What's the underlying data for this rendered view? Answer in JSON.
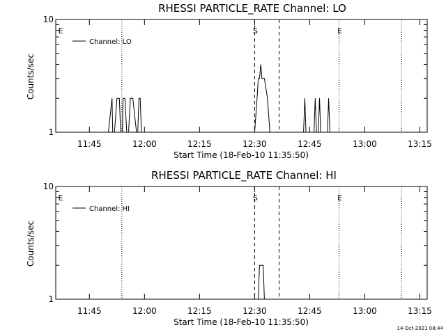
{
  "chart_data": [
    {
      "type": "line",
      "title": "RHESSI PARTICLE_RATE Channel: LO",
      "xlabel": "Start Time (18-Feb-10 11:35:50)",
      "ylabel": "Counts/sec",
      "y_scale": "log",
      "ylim": [
        1,
        10
      ],
      "y_ticks": [
        "1",
        "10"
      ],
      "xlim": [
        "11:35:50",
        "13:17:00"
      ],
      "x_ticks": [
        "11:45",
        "12:00",
        "12:15",
        "12:30",
        "12:45",
        "13:00",
        "13:15"
      ],
      "legend": {
        "position": "top-left",
        "label": "Channel: LO"
      },
      "grid": false,
      "markers": [
        {
          "time": "11:37:00",
          "label": "E",
          "style": "none"
        },
        {
          "time": "11:53:50",
          "label": "",
          "style": "dotted"
        },
        {
          "time": "12:30:00",
          "label": "S",
          "style": "dashed"
        },
        {
          "time": "12:36:40",
          "label": "",
          "style": "dashed"
        },
        {
          "time": "12:53:00",
          "label": "E",
          "style": "dotted"
        },
        {
          "time": "13:10:00",
          "label": "",
          "style": "dotted"
        }
      ],
      "series": [
        {
          "name": "Channel: LO",
          "x": [
            "11:50:10",
            "11:51:10",
            "11:51:20",
            "11:51:50",
            "11:52:30",
            "11:53:10",
            "11:53:30",
            "11:54:00",
            "11:54:10",
            "11:54:40",
            "11:55:10",
            "11:55:40",
            "11:56:10",
            "11:56:50",
            "11:57:50",
            "11:58:10",
            "11:58:30",
            "11:58:50",
            "11:59:10",
            "11:59:30",
            "12:30:00",
            "12:30:40",
            "12:31:00",
            "12:31:20",
            "12:31:40",
            "12:32:00",
            "12:32:20",
            "12:32:40",
            "12:33:30",
            "12:34:10",
            "12:43:20",
            "12:43:40",
            "12:44:00",
            "12:46:10",
            "12:46:30",
            "12:46:50",
            "12:47:20",
            "12:47:40",
            "12:48:00",
            "12:49:50",
            "12:50:10",
            "12:50:30"
          ],
          "y": [
            1,
            2,
            1,
            1,
            2,
            2,
            1,
            1,
            2,
            2,
            1,
            1,
            2,
            2,
            1,
            1,
            2,
            2,
            1,
            1,
            1,
            2,
            3,
            3,
            4,
            3,
            3,
            3,
            2,
            1,
            1,
            2,
            1,
            1,
            2,
            1,
            1,
            2,
            1,
            1,
            2,
            1
          ]
        }
      ]
    },
    {
      "type": "line",
      "title": "RHESSI PARTICLE_RATE Channel: HI",
      "xlabel": "Start Time (18-Feb-10 11:35:50)",
      "ylabel": "Counts/sec",
      "y_scale": "log",
      "ylim": [
        1,
        10
      ],
      "y_ticks": [
        "1",
        "10"
      ],
      "xlim": [
        "11:35:50",
        "13:17:00"
      ],
      "x_ticks": [
        "11:45",
        "12:00",
        "12:15",
        "12:30",
        "12:45",
        "13:00",
        "13:15"
      ],
      "legend": {
        "position": "top-left",
        "label": "Channel: HI"
      },
      "grid": false,
      "markers": [
        {
          "time": "11:37:00",
          "label": "E",
          "style": "none"
        },
        {
          "time": "11:53:50",
          "label": "",
          "style": "dotted"
        },
        {
          "time": "12:30:00",
          "label": "S",
          "style": "dashed"
        },
        {
          "time": "12:36:40",
          "label": "",
          "style": "dashed"
        },
        {
          "time": "12:53:00",
          "label": "E",
          "style": "dotted"
        },
        {
          "time": "13:10:00",
          "label": "",
          "style": "dotted"
        }
      ],
      "series": [
        {
          "name": "Channel: HI",
          "x": [
            "12:30:00",
            "12:31:00",
            "12:31:20",
            "12:32:20",
            "12:32:40"
          ],
          "y": [
            1,
            1,
            2,
            2,
            1
          ]
        }
      ]
    }
  ],
  "footer": {
    "timestamp": "14-Oct-2021 08:44"
  }
}
